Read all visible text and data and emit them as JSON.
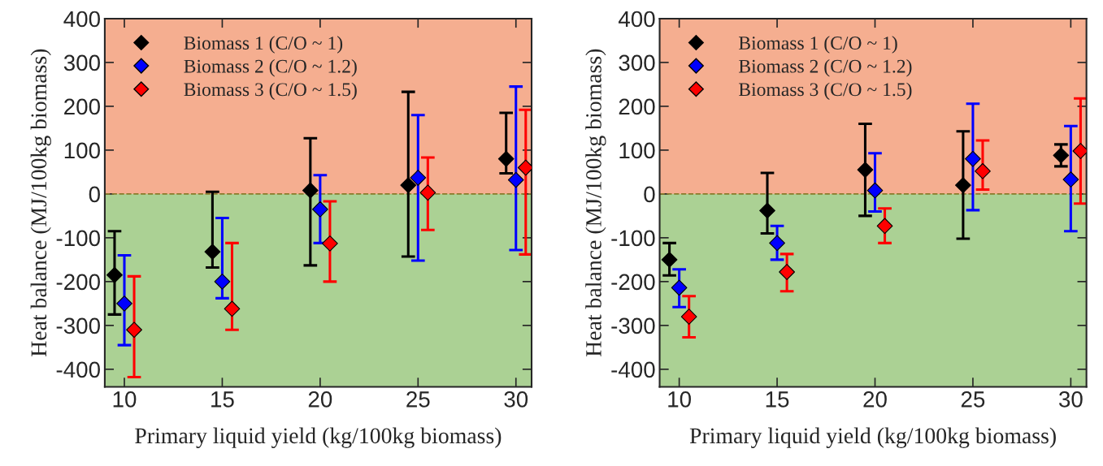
{
  "chart_data": [
    {
      "type": "scatter",
      "xlabel": "Primary liquid yield (kg/100kg biomass)",
      "ylabel": "Heat balance (MJ/100kg biomass)",
      "xlim": [
        9,
        30.8
      ],
      "ylim": [
        -440,
        400
      ],
      "xticks": [
        10,
        15,
        20,
        25,
        30
      ],
      "yticks": [
        -400,
        -300,
        -200,
        -100,
        0,
        100,
        200,
        300,
        400
      ],
      "grid": false,
      "legend": "top left",
      "marker": "diamond",
      "bands": [
        {
          "axis": "y",
          "from": 0,
          "to": 400,
          "color": "#f5ae90"
        },
        {
          "axis": "y",
          "from": -440,
          "to": 0,
          "color": "#abd194"
        }
      ],
      "ref_lines": [
        {
          "axis": "y",
          "value": 0,
          "color": "#8b7a2a",
          "line_style": "dashed"
        }
      ],
      "series": [
        {
          "name": "Biomass 1 (C/O ~ 1)",
          "color": "#000000",
          "x": [
            9.5,
            14.5,
            19.5,
            24.5,
            29.5
          ],
          "values": [
            -185,
            -132,
            8,
            20,
            80
          ],
          "errors": [
            [
              -275,
              -85
            ],
            [
              -168,
              5
            ],
            [
              -163,
              127
            ],
            [
              -143,
              233
            ],
            [
              47,
              185
            ]
          ]
        },
        {
          "name": "Biomass 2 (C/O ~ 1.2)",
          "color": "#0000ff",
          "x": [
            10,
            15,
            20,
            25,
            30
          ],
          "values": [
            -250,
            -200,
            -35,
            37,
            32
          ],
          "errors": [
            [
              -345,
              -140
            ],
            [
              -238,
              -55
            ],
            [
              -112,
              43
            ],
            [
              -152,
              180
            ],
            [
              -128,
              245
            ]
          ]
        },
        {
          "name": "Biomass 3 (C/O ~ 1.5)",
          "color": "#ff0000",
          "x": [
            10.5,
            15.5,
            20.5,
            25.5,
            30.5
          ],
          "values": [
            -310,
            -262,
            -113,
            3,
            60
          ],
          "errors": [
            [
              -418,
              -188
            ],
            [
              -310,
              -112
            ],
            [
              -200,
              -17
            ],
            [
              -82,
              83
            ],
            [
              -138,
              192
            ]
          ]
        }
      ]
    },
    {
      "type": "scatter",
      "xlabel": "Primary liquid yield (kg/100kg biomass)",
      "ylabel": "Heat balance (MJ/100kg biomass)",
      "xlim": [
        9,
        30.8
      ],
      "ylim": [
        -440,
        400
      ],
      "xticks": [
        10,
        15,
        20,
        25,
        30
      ],
      "yticks": [
        -400,
        -300,
        -200,
        -100,
        0,
        100,
        200,
        300,
        400
      ],
      "grid": false,
      "legend": "top left",
      "marker": "diamond",
      "bands": [
        {
          "axis": "y",
          "from": 0,
          "to": 400,
          "color": "#f5ae90"
        },
        {
          "axis": "y",
          "from": -440,
          "to": 0,
          "color": "#abd194"
        }
      ],
      "ref_lines": [
        {
          "axis": "y",
          "value": 0,
          "color": "#8b7a2a",
          "line_style": "dashed"
        }
      ],
      "series": [
        {
          "name": "Biomass 1 (C/O ~ 1)",
          "color": "#000000",
          "x": [
            9.5,
            14.5,
            19.5,
            24.5,
            29.5
          ],
          "values": [
            -150,
            -38,
            55,
            20,
            88
          ],
          "errors": [
            [
              -186,
              -112
            ],
            [
              -90,
              48
            ],
            [
              -50,
              160
            ],
            [
              -102,
              143
            ],
            [
              63,
              113
            ]
          ]
        },
        {
          "name": "Biomass 2 (C/O ~ 1.2)",
          "color": "#0000ff",
          "x": [
            10,
            15,
            20,
            25,
            30
          ],
          "values": [
            -214,
            -112,
            8,
            80,
            33
          ],
          "errors": [
            [
              -258,
              -172
            ],
            [
              -150,
              -73
            ],
            [
              -40,
              93
            ],
            [
              -37,
              206
            ],
            [
              -85,
              155
            ]
          ]
        },
        {
          "name": "Biomass 3 (C/O ~ 1.5)",
          "color": "#ff0000",
          "x": [
            10.5,
            15.5,
            20.5,
            25.5,
            30.5
          ],
          "values": [
            -280,
            -178,
            -73,
            52,
            98
          ],
          "errors": [
            [
              -327,
              -233
            ],
            [
              -222,
              -137
            ],
            [
              -112,
              -33
            ],
            [
              10,
              122
            ],
            [
              -22,
              218
            ]
          ]
        }
      ]
    }
  ]
}
